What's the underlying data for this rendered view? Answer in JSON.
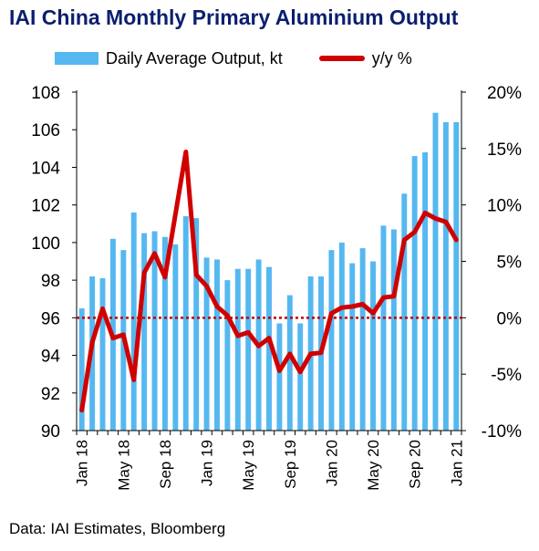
{
  "title": "IAI China Monthly Primary Aluminium Output",
  "source": "Data: IAI Estimates, Bloomberg",
  "colors": {
    "bar": "#55b8f0",
    "line": "#d00000",
    "title": "#0b1f6e",
    "zero_line": "#c00000"
  },
  "chart_data": {
    "type": "bar",
    "title": "IAI China Monthly Primary Aluminium Output",
    "legend_position": "top",
    "grid": false,
    "x": [
      "Jan 18",
      "Feb 18",
      "Mar 18",
      "Apr 18",
      "May 18",
      "Jun 18",
      "Jul 18",
      "Aug 18",
      "Sep 18",
      "Oct 18",
      "Nov 18",
      "Dec 18",
      "Jan 19",
      "Feb 19",
      "Mar 19",
      "Apr 19",
      "May 19",
      "Jun 19",
      "Jul 19",
      "Aug 19",
      "Sep 19",
      "Oct 19",
      "Nov 19",
      "Dec 19",
      "Jan 20",
      "Feb 20",
      "Mar 20",
      "Apr 20",
      "May 20",
      "Jun 20",
      "Jul 20",
      "Aug 20",
      "Sep 20",
      "Oct 20",
      "Nov 20",
      "Dec 20",
      "Jan 21"
    ],
    "x_tick_labels": [
      "Jan 18",
      "May 18",
      "Sep 18",
      "Jan 19",
      "May 19",
      "Sep 19",
      "Jan 20",
      "May 20",
      "Sep 20",
      "Jan 21"
    ],
    "series": [
      {
        "name": "Daily Average Output, kt",
        "type": "bar",
        "axis": "left",
        "values": [
          96.5,
          98.2,
          98.1,
          100.2,
          99.6,
          101.6,
          100.5,
          100.6,
          100.3,
          99.9,
          101.4,
          101.3,
          99.2,
          99.1,
          98.0,
          98.6,
          98.6,
          99.1,
          98.7,
          95.7,
          97.2,
          95.7,
          98.2,
          98.2,
          99.6,
          100.0,
          98.9,
          99.7,
          99.0,
          100.9,
          100.7,
          102.6,
          104.6,
          104.8,
          106.9,
          106.4,
          106.4
        ]
      },
      {
        "name": "y/y %",
        "type": "line",
        "axis": "right",
        "values": [
          -8.2,
          -2.2,
          0.8,
          -1.8,
          -1.5,
          -5.5,
          4.0,
          5.7,
          3.6,
          9.2,
          14.7,
          3.8,
          2.8,
          1.0,
          0.2,
          -1.6,
          -1.3,
          -2.5,
          -1.8,
          -4.7,
          -3.2,
          -4.8,
          -3.2,
          -3.1,
          0.4,
          0.9,
          1.0,
          1.2,
          0.4,
          1.8,
          1.9,
          6.9,
          7.6,
          9.3,
          8.8,
          8.5,
          6.9
        ]
      }
    ],
    "y_left": {
      "min": 90,
      "max": 108,
      "ticks": [
        "90",
        "92",
        "94",
        "96",
        "98",
        "100",
        "102",
        "104",
        "106",
        "108"
      ]
    },
    "y_right": {
      "min": -10,
      "max": 20,
      "ticks": [
        "-10%",
        "-5%",
        "0%",
        "5%",
        "10%",
        "15%",
        "20%"
      ]
    }
  }
}
